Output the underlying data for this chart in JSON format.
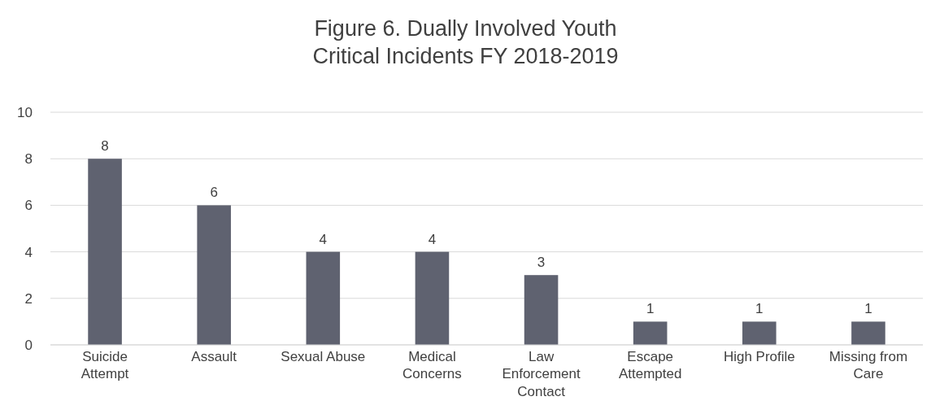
{
  "chart_data": {
    "type": "bar",
    "title": "Figure 6. Dually Involved Youth\nCritical Incidents FY 2018-2019",
    "categories": [
      "Suicide Attempt",
      "Assault",
      "Sexual Abuse",
      "Medical Concerns",
      "Law Enforcement Contact",
      "Escape Attempted",
      "High Profile",
      "Missing from Care"
    ],
    "values": [
      8,
      6,
      4,
      4,
      3,
      1,
      1,
      1
    ],
    "color": "#5f6270",
    "ylim": [
      0,
      10
    ],
    "yticks": [
      0,
      2,
      4,
      6,
      8,
      10
    ],
    "grid": "y",
    "data_labels": true
  }
}
